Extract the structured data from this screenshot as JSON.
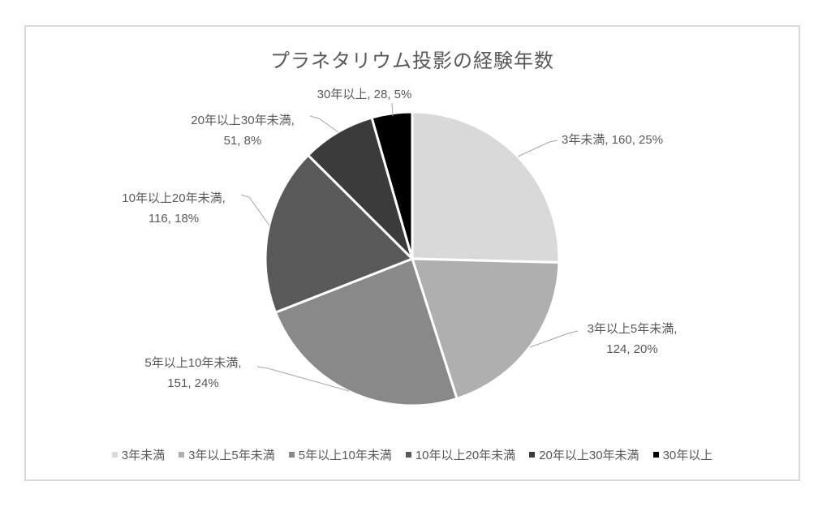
{
  "chart_data": {
    "type": "pie",
    "title": "プラネタリウム投影の経験年数",
    "categories": [
      "3年未満",
      "3年以上5年未満",
      "5年以上10年未満",
      "10年以上20年未満",
      "20年以上30年未満",
      "30年以上"
    ],
    "values": [
      160,
      124,
      151,
      116,
      51,
      28
    ],
    "displayed_percents": [
      25,
      20,
      24,
      18,
      8,
      5
    ],
    "data_labels": [
      "3年未満, 160, 25%",
      "3年以上5年未満, 124, 20%",
      "5年以上10年未満, 151, 24%",
      "10年以上20年未満, 116, 18%",
      "20年以上30年未満, 51, 8%",
      "30年以上, 28, 5%"
    ],
    "label_format": "{category}, {value}, {percent}%",
    "colors": [
      "#d9d9d9",
      "#afafaf",
      "#898989",
      "#595959",
      "#3b3b3b",
      "#000000"
    ],
    "legend_position": "bottom",
    "legend_items": [
      "3年未満",
      "3年以上5年未満",
      "5年以上10年未満",
      "10年以上20年未満",
      "20年以上30年未満",
      "30年以上"
    ],
    "start_angle_deg": 0,
    "slice_border_color": "#ffffff",
    "text_color": "#595959",
    "leader_line_color": "#a6a6a6",
    "frame_border_color": "#d9d9d9"
  }
}
